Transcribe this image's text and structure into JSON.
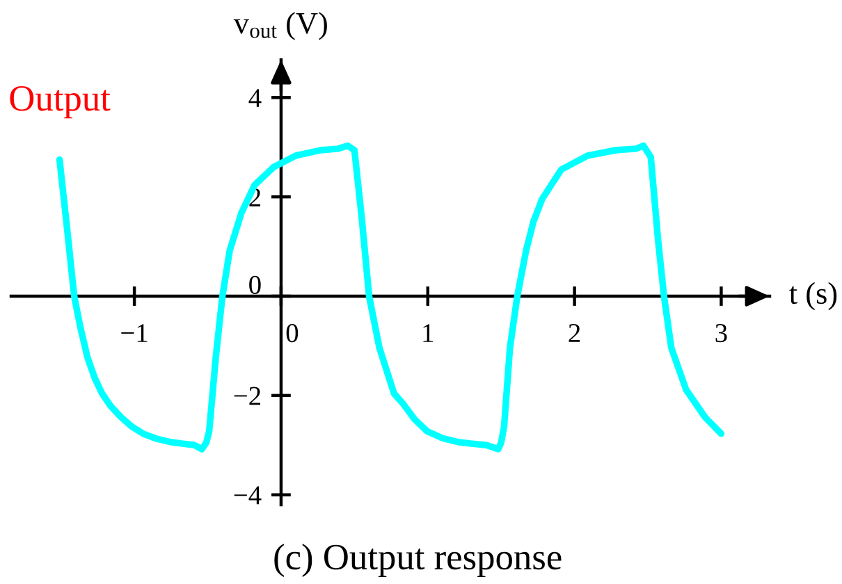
{
  "chart_data": {
    "type": "line",
    "xlabel": "t (s)",
    "ylabel": "v$_{out}$ (V)",
    "annotations": [
      "(c) Output response"
    ],
    "xlim": [
      -1.84,
      3.33
    ],
    "ylim": [
      -4.2,
      4.76
    ],
    "xticks": [
      {
        "value": -1,
        "label": "−1"
      },
      0,
      1,
      2,
      3
    ],
    "yticks": [
      {
        "value": -4,
        "label": "−4"
      },
      {
        "value": -2,
        "label": "−2"
      },
      0,
      2,
      4
    ],
    "grid": false,
    "legend": false,
    "line_style": "solid",
    "series": [
      {
        "name": "Output",
        "color": "#00ffff",
        "x": [
          -1.51,
          -1.46,
          -1.41,
          -1.37,
          -1.32,
          -1.27,
          -1.22,
          -1.16,
          -1.09,
          -1.02,
          -0.94,
          -0.85,
          -0.75,
          -0.67,
          -0.59,
          -0.54,
          -0.51,
          -0.49,
          -0.445,
          -0.4,
          -0.35,
          -0.27,
          -0.18,
          -0.05,
          0.1,
          0.27,
          0.39,
          0.455,
          0.5,
          0.55,
          0.6,
          0.67,
          0.77,
          0.83,
          0.91,
          0.995,
          1.1,
          1.21,
          1.3,
          1.4,
          1.48,
          1.5,
          1.52,
          1.56,
          1.61,
          1.67,
          1.72,
          1.78,
          1.91,
          2.09,
          2.28,
          2.42,
          2.47,
          2.52,
          2.57,
          2.61,
          2.66,
          2.76,
          2.89,
          3.0
        ],
        "values": [
          2.75,
          1.4,
          0.0,
          -0.6,
          -1.23,
          -1.65,
          -1.96,
          -2.22,
          -2.44,
          -2.62,
          -2.77,
          -2.87,
          -2.94,
          -2.97,
          -3.0,
          -3.08,
          -2.95,
          -2.72,
          -1.23,
          0.0,
          0.92,
          1.68,
          2.24,
          2.6,
          2.83,
          2.94,
          2.97,
          3.03,
          2.94,
          1.57,
          0.0,
          -1.04,
          -1.96,
          -2.16,
          -2.48,
          -2.72,
          -2.86,
          -2.94,
          -2.97,
          -3.0,
          -3.08,
          -2.95,
          -2.63,
          -1.04,
          0.0,
          0.92,
          1.5,
          1.96,
          2.55,
          2.83,
          2.94,
          2.97,
          3.03,
          2.8,
          1.12,
          0.0,
          -1.04,
          -1.88,
          -2.44,
          -2.77
        ]
      }
    ]
  }
}
